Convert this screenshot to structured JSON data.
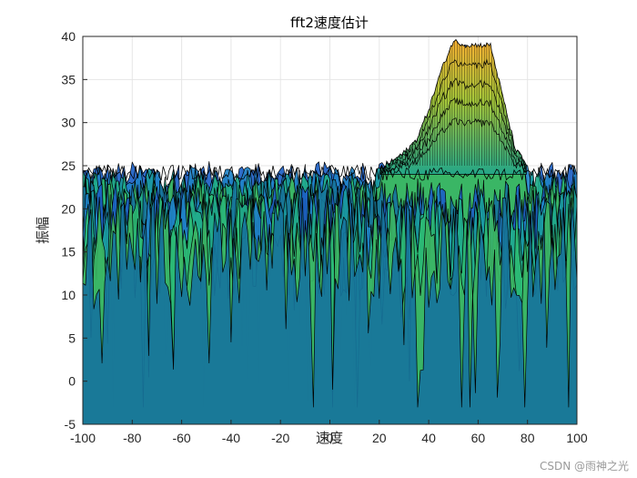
{
  "chart_data": {
    "type": "area",
    "title": "fft2速度估计",
    "xlabel": "速度",
    "ylabel": "振幅",
    "xlim": [
      -100,
      100
    ],
    "ylim": [
      -5,
      40
    ],
    "xticks": [
      "-100",
      "-80",
      "-60",
      "-40",
      "-20",
      "0",
      "20",
      "40",
      "60",
      "80",
      "100"
    ],
    "yticks": [
      "-5",
      "0",
      "5",
      "10",
      "15",
      "20",
      "25",
      "30",
      "35",
      "40"
    ],
    "grid": true,
    "colormap": "parula-like (blue-green-yellow)",
    "description_hint": "noise floor ~24; peak ~39.5 near velocity 50-65",
    "peak": {
      "x": [
        20,
        25,
        30,
        35,
        40,
        45,
        50,
        55,
        60,
        65,
        70,
        75,
        80
      ],
      "y": [
        24.5,
        25.5,
        26.5,
        28.0,
        31.5,
        36.0,
        39.5,
        39.0,
        39.0,
        39.0,
        33.0,
        27.0,
        25.0
      ]
    },
    "noise_floor": 24,
    "trough_min": -3
  },
  "watermark": "CSDN @雨神之光",
  "colors": {
    "axis": "#262626",
    "grid": "#e6e6e6",
    "surface_low": "#1f6fd0",
    "surface_mid": "#20b28a",
    "surface_high": "#f9b233",
    "edge": "#000000"
  }
}
